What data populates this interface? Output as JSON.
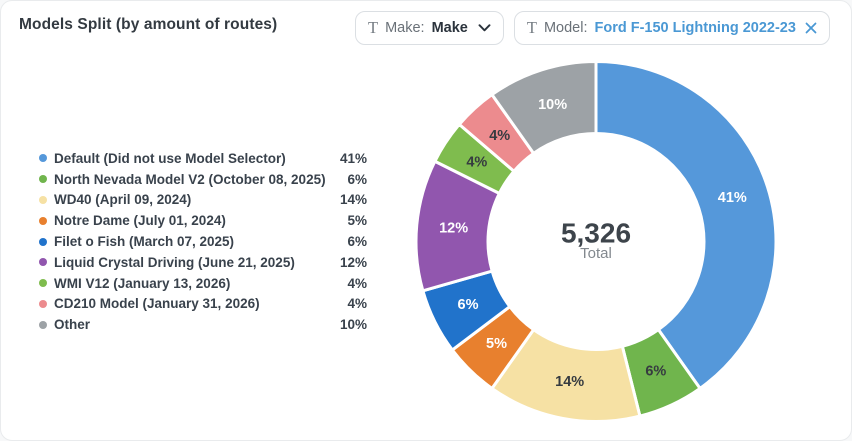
{
  "header": {
    "title": "Models Split (by amount of routes)",
    "filters": [
      {
        "type_glyph": "T",
        "field": "Make:",
        "value": "Make",
        "control": "dropdown"
      },
      {
        "type_glyph": "T",
        "field": "Model:",
        "value": "Ford F-150 Lightning 2022-23",
        "control": "removable"
      }
    ],
    "more_menu_icon": "ellipsis-horizontal"
  },
  "chart_data": {
    "type": "pie",
    "subtype": "donut",
    "title": "Models Split (by amount of routes)",
    "total": "5,326",
    "total_label": "Total",
    "start_angle": "top",
    "direction": "clockwise",
    "inner_radius_ratio": 0.6,
    "slice_gap_color": "#FFFFFF",
    "legend_position": "left",
    "slices": [
      {
        "label": "Default (Did not use Model Selector)",
        "pct": "41%",
        "value": 41,
        "color": "#5598DA",
        "label_color": "#FFFFFF"
      },
      {
        "label": "North Nevada Model V2 (October 08, 2025)",
        "pct": "6%",
        "value": 6,
        "color": "#70B54D",
        "label_color": "#363B40"
      },
      {
        "label": "WD40 (April 09, 2024)",
        "pct": "14%",
        "value": 14,
        "color": "#F6E1A4",
        "label_color": "#363B40"
      },
      {
        "label": "Notre Dame (July 01, 2024)",
        "pct": "5%",
        "value": 5,
        "color": "#E8802E",
        "label_color": "#FFFFFF"
      },
      {
        "label": "Filet o Fish (March 07, 2025)",
        "pct": "6%",
        "value": 6,
        "color": "#2173CB",
        "label_color": "#FFFFFF"
      },
      {
        "label": "Liquid Crystal Driving (June 21, 2025)",
        "pct": "12%",
        "value": 12,
        "color": "#9156AE",
        "label_color": "#FFFFFF"
      },
      {
        "label": "WMI V12 (January 13, 2026)",
        "pct": "4%",
        "value": 4,
        "color": "#7FBC4E",
        "label_color": "#363B40"
      },
      {
        "label": "CD210 Model (January 31, 2026)",
        "pct": "4%",
        "value": 4,
        "color": "#EC8B8E",
        "label_color": "#363B40"
      },
      {
        "label": "Other",
        "pct": "10%",
        "value": 10,
        "color": "#9DA2A6",
        "label_color": "#FFFFFF"
      }
    ],
    "colors": {
      "title_text": "#333A41",
      "legend_text": "#39424C",
      "total_text": "#3D444B",
      "total_caption": "#82888E",
      "chip_value_blue": "#4A98D4",
      "chip_border": "#DBDFE3"
    }
  }
}
